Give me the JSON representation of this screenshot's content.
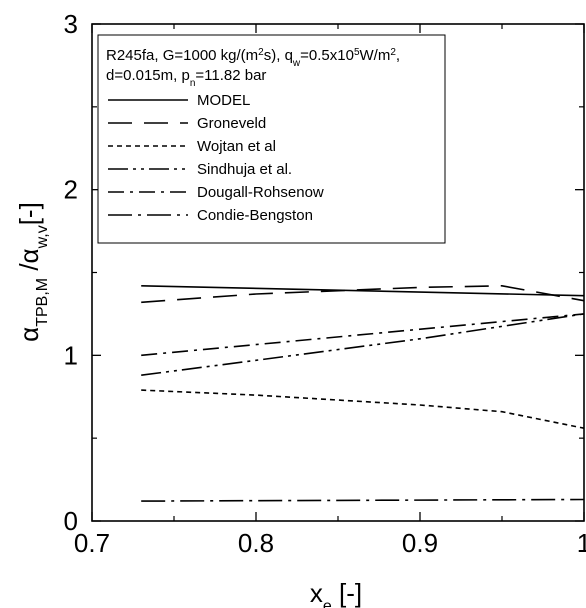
{
  "chart_data": {
    "type": "line",
    "xlabel": {
      "main": "x",
      "sub": "e",
      "rest": " [-]"
    },
    "ylabel": {
      "a": "α",
      "a_sub": "TPB,M",
      "mid": " /α",
      "b_sub": "w,v",
      "rest": "[-]"
    },
    "xlim": [
      0.7,
      1.0
    ],
    "ylim": [
      0,
      3
    ],
    "xticks": [
      {
        "v": 0.7,
        "label": "0.7"
      },
      {
        "v": 0.8,
        "label": "0.8"
      },
      {
        "v": 0.9,
        "label": "0.9"
      },
      {
        "v": 1.0,
        "label": "1"
      }
    ],
    "yticks": [
      {
        "v": 0,
        "label": "0"
      },
      {
        "v": 1,
        "label": "1"
      },
      {
        "v": 2,
        "label": "2"
      },
      {
        "v": 3,
        "label": "3"
      }
    ],
    "grid": false,
    "legend_position": "top-left",
    "legend_title": {
      "line1_a": "R245fa, G=1000 kg/(m",
      "line1_sup1": "2",
      "line1_b": "s), q",
      "line1_sub": "w",
      "line1_c": "=0.5x10",
      "line1_sup2": "5",
      "line1_d": "W/m",
      "line1_sup3": "2",
      "line1_e": ",",
      "line2_a": "d=0.015m, p",
      "line2_sub": "n",
      "line2_b": "=11.82 bar"
    },
    "series": [
      {
        "name": "MODEL",
        "dash": "solid",
        "x": [
          0.73,
          1.0
        ],
        "y": [
          1.42,
          1.36
        ]
      },
      {
        "name": "Groneveld",
        "dash": "longdash",
        "x": [
          0.73,
          0.8,
          0.9,
          0.95,
          1.0
        ],
        "y": [
          1.32,
          1.37,
          1.41,
          1.42,
          1.33
        ]
      },
      {
        "name": "Wojtan et al",
        "dash": "short",
        "x": [
          0.73,
          0.8,
          0.9,
          0.95,
          1.0
        ],
        "y": [
          0.79,
          0.76,
          0.7,
          0.66,
          0.56
        ]
      },
      {
        "name": "Sindhuja et al.",
        "dash": "dashdotdot",
        "x": [
          0.73,
          0.8,
          0.9,
          1.0
        ],
        "y": [
          0.88,
          0.97,
          1.1,
          1.25
        ]
      },
      {
        "name": "Dougall-Rohsenow",
        "dash": "dashdot",
        "x": [
          0.73,
          1.0
        ],
        "y": [
          1.0,
          1.25
        ]
      },
      {
        "name": "Condie-Bengston",
        "dash": "dashdotlong",
        "x": [
          0.73,
          1.0
        ],
        "y": [
          0.12,
          0.13
        ]
      }
    ]
  },
  "styles": {
    "line_color": "#000000",
    "background": "#ffffff"
  }
}
